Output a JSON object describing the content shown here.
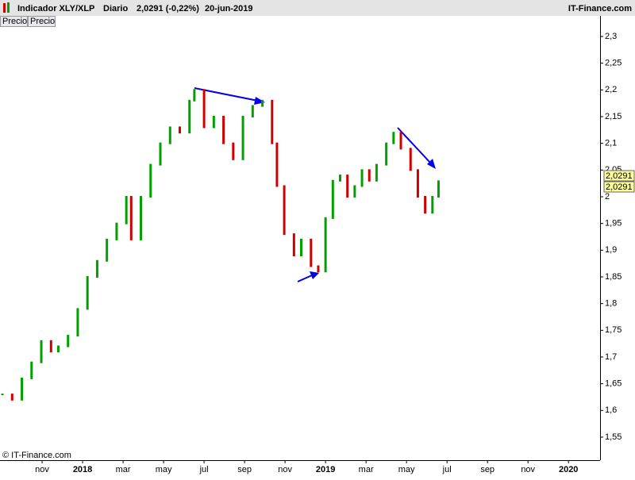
{
  "header": {
    "title": "Indicador XLY/XLP",
    "period": "Diario",
    "last": "2,0291 (-0,22%)",
    "date": "20-jun-2019",
    "brand": "IT-Finance.com"
  },
  "tabs": [
    "Precio",
    "Precio"
  ],
  "copyright": "© IT-Finance.com",
  "price_tags": [
    "2,0291",
    "2,0291"
  ],
  "chart_data": {
    "type": "candlestick",
    "up_color": "#00a000",
    "down_color": "#d00000",
    "x": [
      2017.67,
      2017.71,
      2017.75,
      2017.79,
      2017.83,
      2017.87,
      2017.9,
      2017.94,
      2017.98,
      2018.02,
      2018.06,
      2018.1,
      2018.14,
      2018.18,
      2018.2,
      2018.24,
      2018.28,
      2018.32,
      2018.36,
      2018.4,
      2018.44,
      2018.46,
      2018.5,
      2018.54,
      2018.58,
      2018.62,
      2018.66,
      2018.7,
      2018.74,
      2018.78,
      2018.8,
      2018.83,
      2018.87,
      2018.9,
      2018.94,
      2018.97,
      2019.0,
      2019.03,
      2019.06,
      2019.09,
      2019.12,
      2019.15,
      2019.18,
      2019.21,
      2019.25,
      2019.28,
      2019.31,
      2019.35,
      2019.38,
      2019.41,
      2019.44,
      2019.465
    ],
    "values": [
      1.63,
      1.62,
      1.66,
      1.69,
      1.73,
      1.71,
      1.72,
      1.74,
      1.79,
      1.85,
      1.88,
      1.92,
      1.95,
      2.0,
      1.92,
      2.0,
      2.06,
      2.1,
      2.13,
      2.12,
      2.18,
      2.2,
      2.13,
      2.15,
      2.1,
      2.07,
      2.15,
      2.17,
      2.18,
      2.1,
      2.02,
      1.93,
      1.89,
      1.92,
      1.87,
      1.86,
      1.96,
      2.03,
      2.04,
      2.0,
      2.02,
      2.05,
      2.03,
      2.06,
      2.1,
      2.12,
      2.09,
      2.05,
      2.0,
      1.97,
      2.0,
      2.0291
    ],
    "xlim": [
      2017.66,
      2020.13
    ],
    "xticks": [
      {
        "value": 2017.8333,
        "label": "nov"
      },
      {
        "value": 2018,
        "label": "2018"
      },
      {
        "value": 2018.1667,
        "label": "mar"
      },
      {
        "value": 2018.3333,
        "label": "may"
      },
      {
        "value": 2018.5,
        "label": "jul"
      },
      {
        "value": 2018.6667,
        "label": "sep"
      },
      {
        "value": 2018.8333,
        "label": "nov"
      },
      {
        "value": 2019,
        "label": "2019"
      },
      {
        "value": 2019.1667,
        "label": "mar"
      },
      {
        "value": 2019.3333,
        "label": "may"
      },
      {
        "value": 2019.5,
        "label": "jul"
      },
      {
        "value": 2019.6667,
        "label": "sep"
      },
      {
        "value": 2019.8333,
        "label": "nov"
      },
      {
        "value": 2020,
        "label": "2020"
      }
    ],
    "ylim": [
      1.5069,
      2.3386
    ],
    "yticks": [
      {
        "value": 1.55,
        "label": "1,55"
      },
      {
        "value": 1.6,
        "label": "1,6"
      },
      {
        "value": 1.65,
        "label": "1,65"
      },
      {
        "value": 1.7,
        "label": "1,7"
      },
      {
        "value": 1.75,
        "label": "1,75"
      },
      {
        "value": 1.8,
        "label": "1,8"
      },
      {
        "value": 1.85,
        "label": "1,85"
      },
      {
        "value": 1.9,
        "label": "1,9"
      },
      {
        "value": 1.95,
        "label": "1,95"
      },
      2,
      {
        "value": 2.05,
        "label": "2,05"
      },
      {
        "value": 2.1,
        "label": "2,1"
      },
      {
        "value": 2.15,
        "label": "2,15"
      },
      {
        "value": 2.2,
        "label": "2,2"
      },
      {
        "value": 2.25,
        "label": "2,25"
      },
      {
        "value": 2.3,
        "label": "2,3"
      }
    ]
  }
}
